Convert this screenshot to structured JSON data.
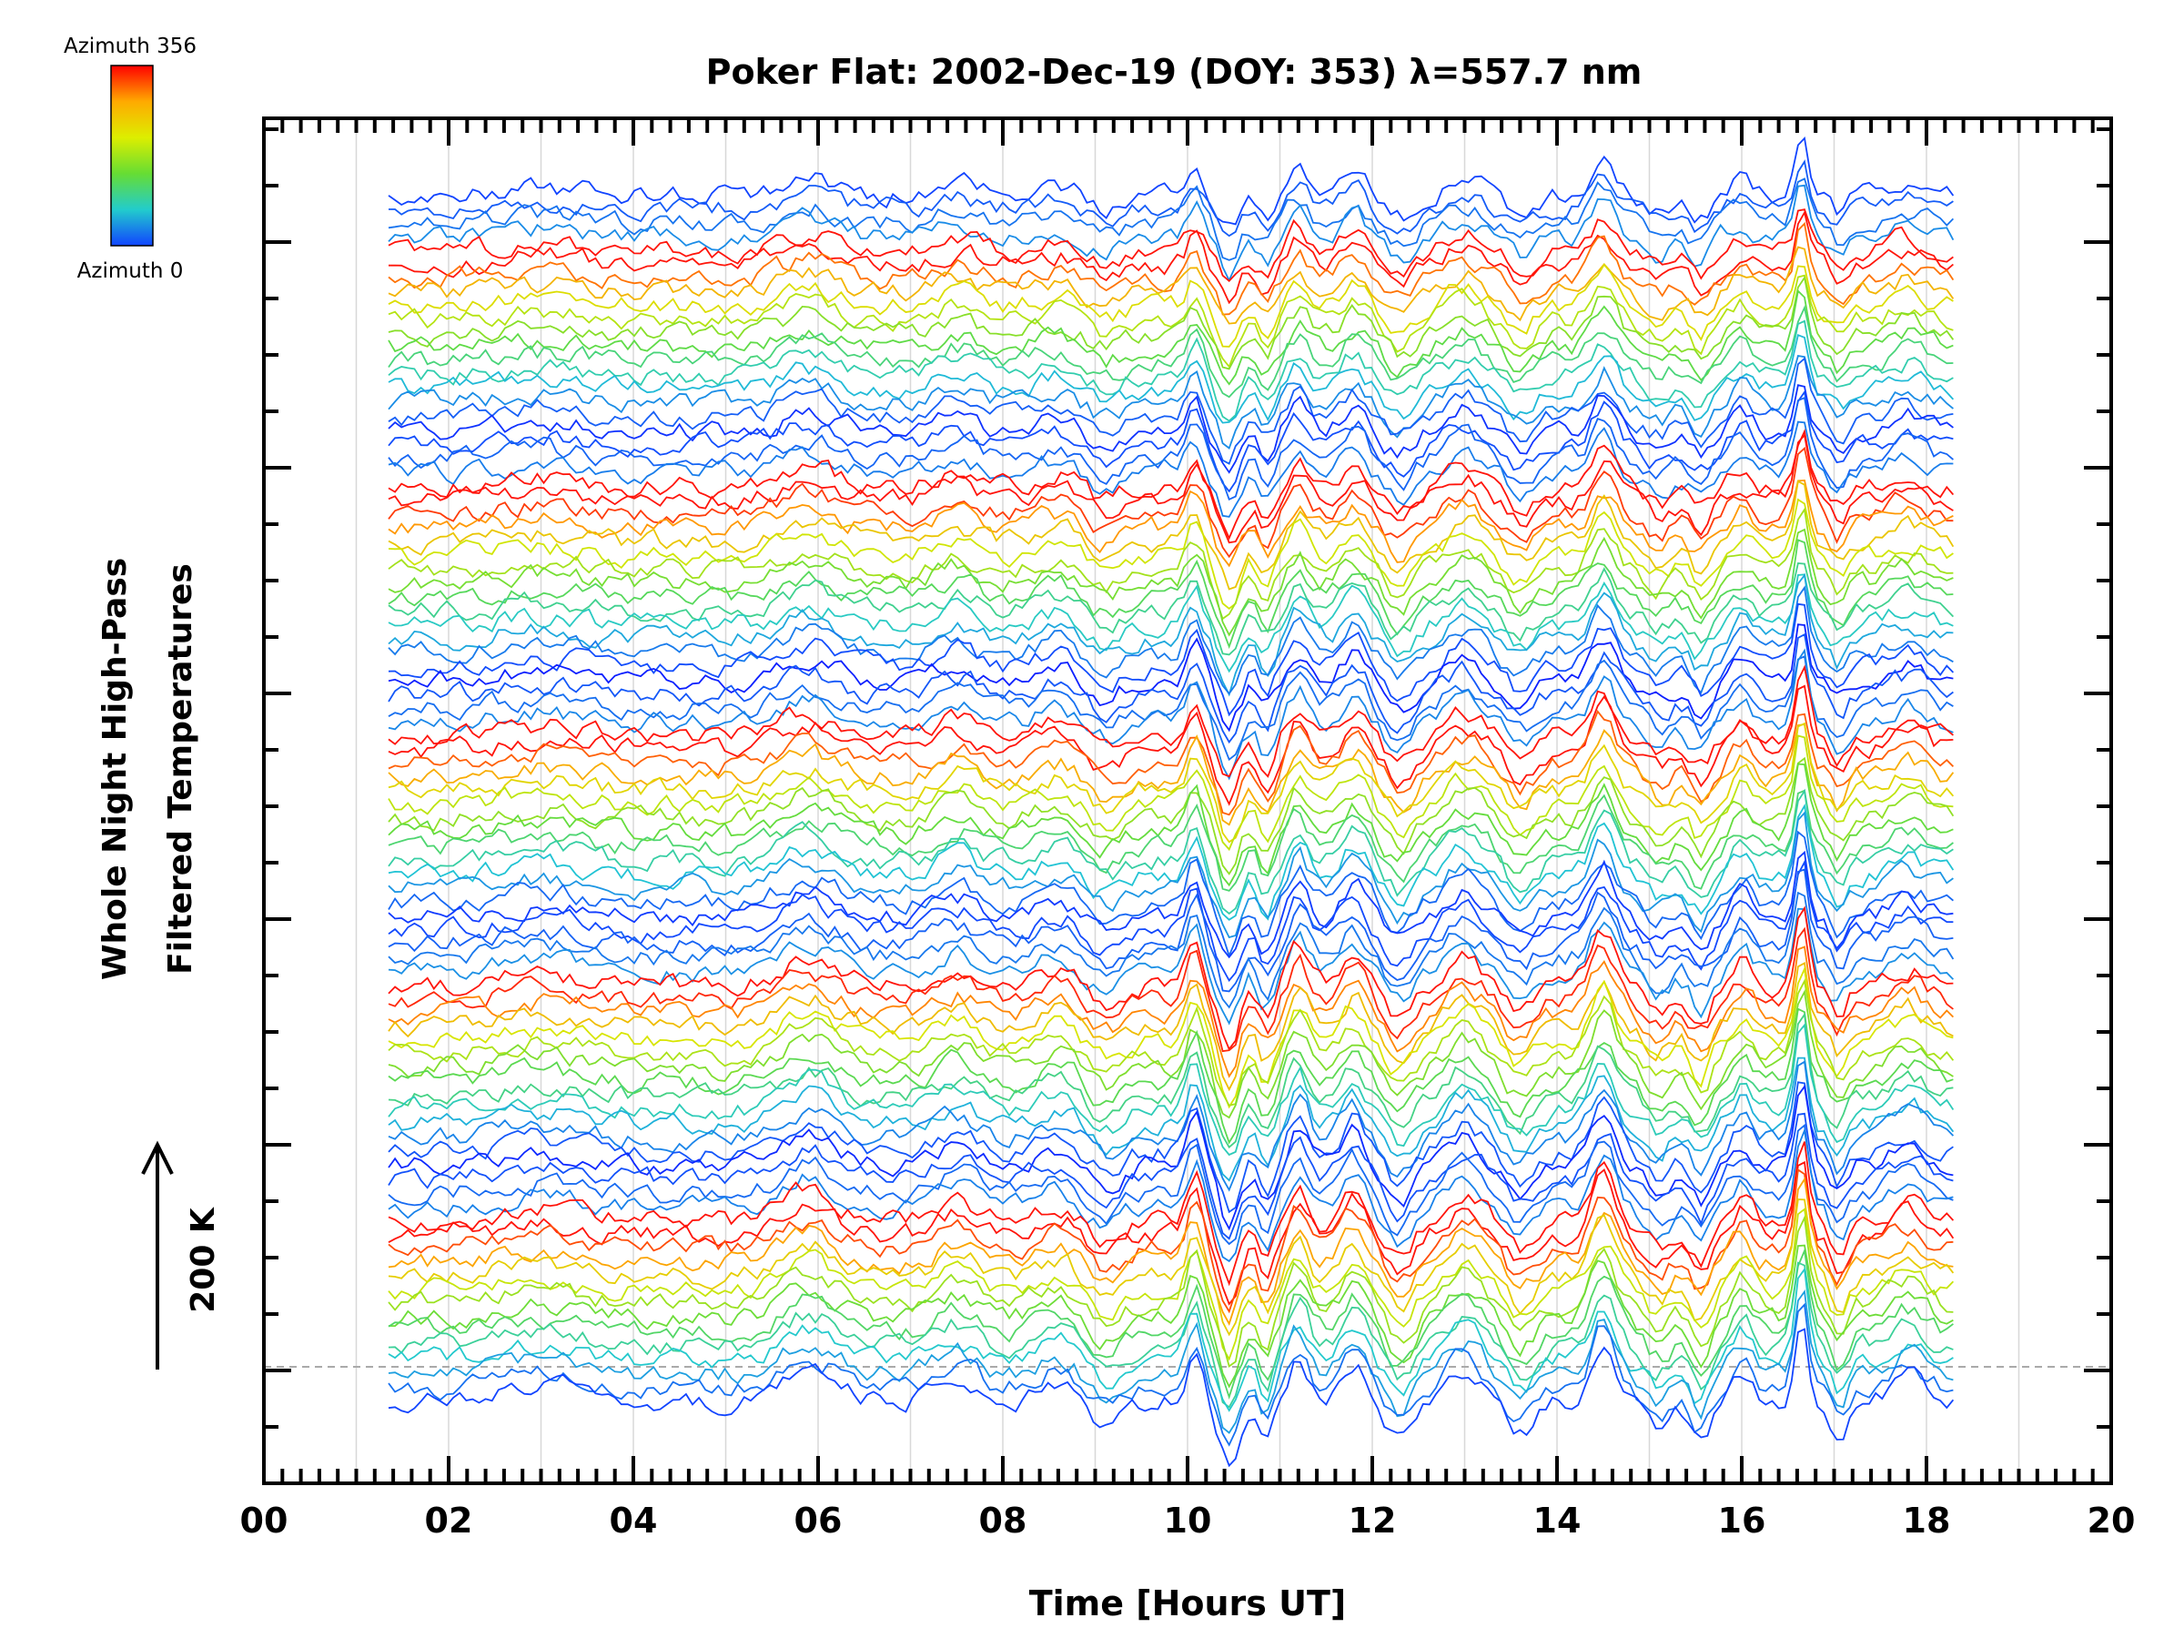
{
  "chart_data": {
    "type": "line",
    "title": "Poker Flat: 2002-Dec-19 (DOY: 353) λ=557.7 nm",
    "xlabel": "Time [Hours UT]",
    "ylabel_line1": "Whole Night High-Pass",
    "ylabel_line2": "Filtered Temperatures",
    "xlim": [
      0,
      20
    ],
    "x_tick_labels": [
      "00",
      "02",
      "04",
      "06",
      "08",
      "10",
      "12",
      "14",
      "16",
      "18",
      "20"
    ],
    "x_range_data": [
      1.35,
      18.35
    ],
    "scale_label": "200 K",
    "colorbar": {
      "top_label": "Azimuth 356",
      "bottom_label": "Azimuth 0",
      "colors": [
        "#ff0000",
        "#ffaa00",
        "#ddee00",
        "#66dd33",
        "#22cccc",
        "#1144ff"
      ]
    },
    "grid": true,
    "series_count": 88,
    "series_groups": 5,
    "event_peaks_hours": [
      10.1,
      10.45,
      11.2,
      11.8,
      14.5,
      16.6
    ]
  }
}
